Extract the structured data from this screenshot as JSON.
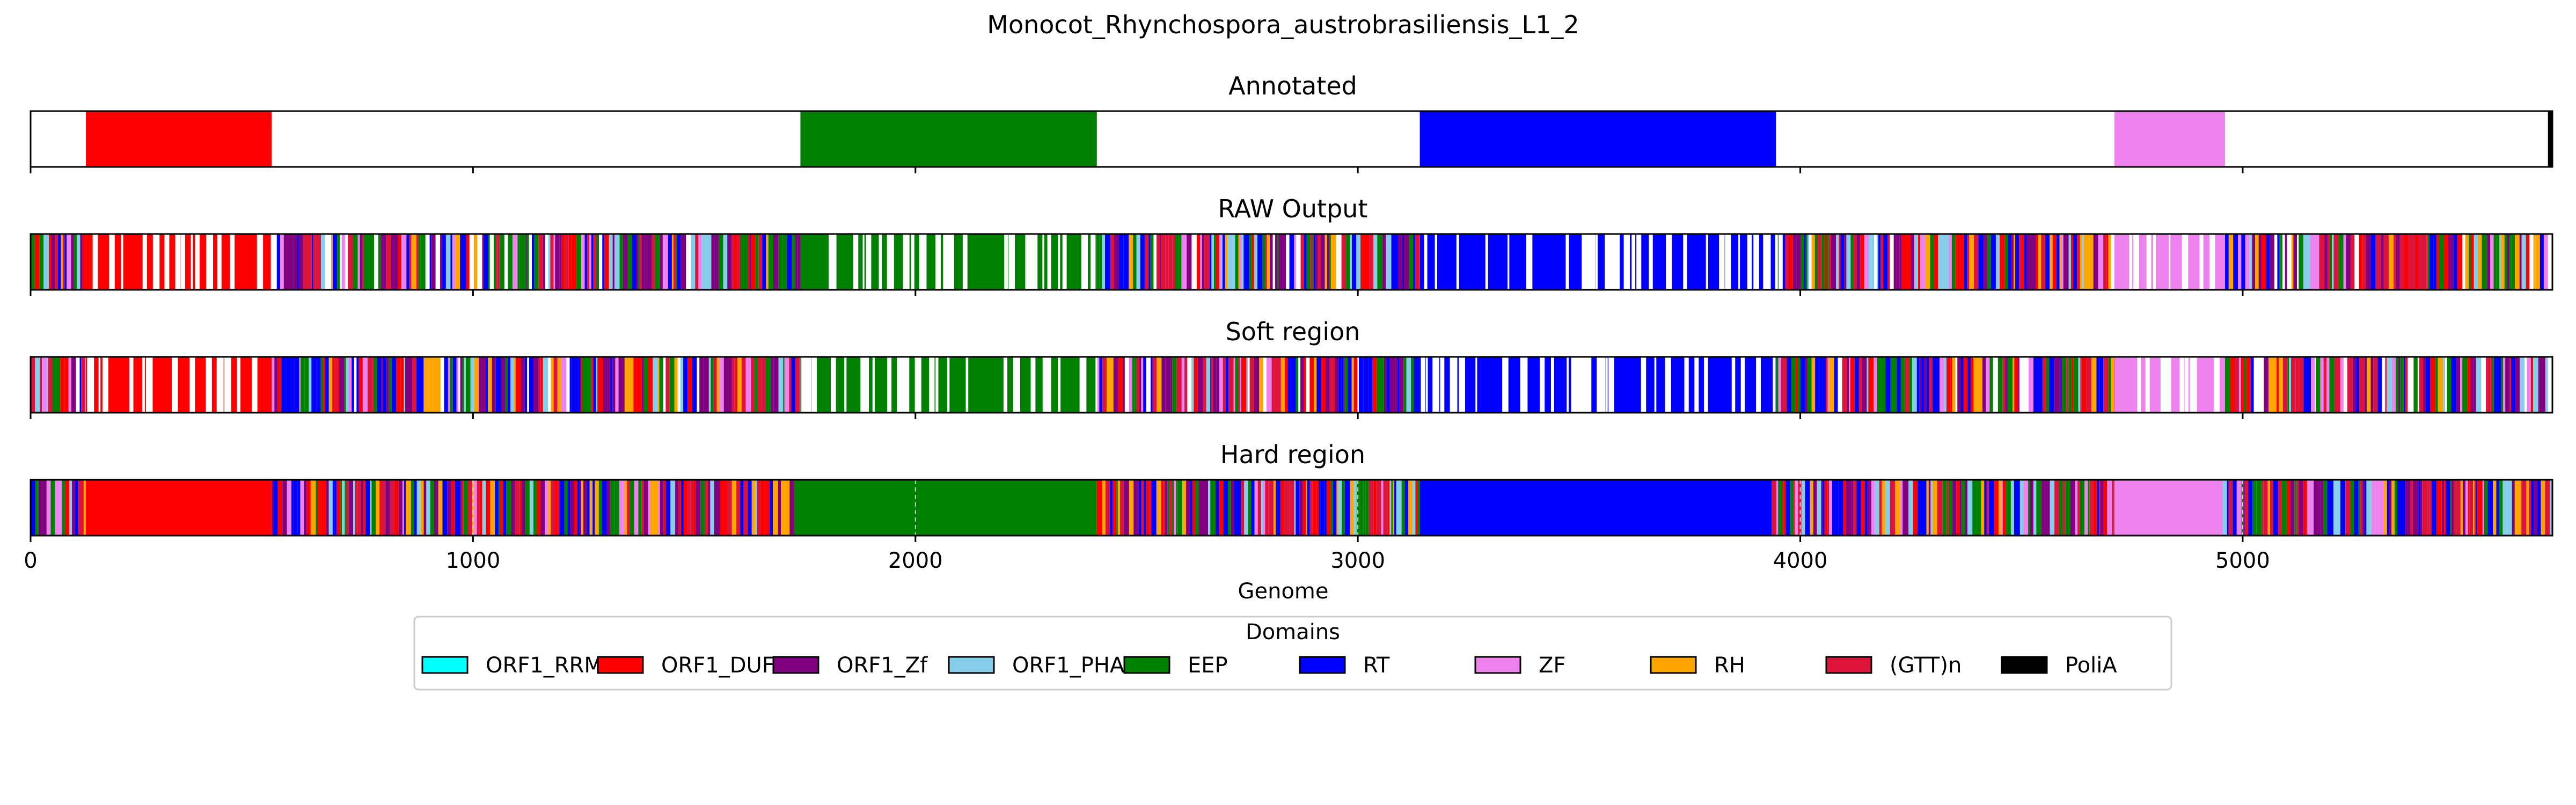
{
  "chart_data": {
    "type": "domain-tracks",
    "title": "Monocot_Rhynchospora_austrobrasiliensis_L1_2",
    "xlabel": "Genome",
    "xlim": [
      0,
      5700
    ],
    "xticks": [
      0,
      1000,
      2000,
      3000,
      4000,
      5000
    ],
    "xtick_labels": [
      "0",
      "1000",
      "2000",
      "3000",
      "4000",
      "5000"
    ],
    "legend_title": "Domains",
    "legend_position": "below",
    "domains": [
      {
        "name": "ORF1_RRM",
        "color": "#00FFFF"
      },
      {
        "name": "ORF1_DUF",
        "color": "#FF0000"
      },
      {
        "name": "ORF1_Zf",
        "color": "#800080"
      },
      {
        "name": "ORF1_PHA",
        "color": "#87CEEB"
      },
      {
        "name": "EEP",
        "color": "#008000"
      },
      {
        "name": "RT",
        "color": "#0000FF"
      },
      {
        "name": "ZF",
        "color": "#EE82EE"
      },
      {
        "name": "RH",
        "color": "#FFA500"
      },
      {
        "name": "(GTT)n",
        "color": "#DC143C"
      },
      {
        "name": "PoliA",
        "color": "#000000"
      }
    ],
    "tracks": [
      {
        "name": "Annotated",
        "segments": [
          {
            "domain": "ORF1_DUF",
            "start": 125,
            "end": 545
          },
          {
            "domain": "EEP",
            "start": 1740,
            "end": 2410
          },
          {
            "domain": "RT",
            "start": 3140,
            "end": 3945
          },
          {
            "domain": "ZF",
            "start": 4710,
            "end": 4960
          },
          {
            "domain": "PoliA",
            "start": 5690,
            "end": 5700
          }
        ],
        "noise": []
      },
      {
        "name": "RAW Output",
        "segments": [
          {
            "domain": "ORF1_DUF",
            "start": 125,
            "end": 545
          },
          {
            "domain": "EEP",
            "start": 1740,
            "end": 2410
          },
          {
            "domain": "RT",
            "start": 3140,
            "end": 3945
          },
          {
            "domain": "ZF",
            "start": 4710,
            "end": 4960
          }
        ],
        "noise": [
          [
            0,
            125
          ],
          [
            545,
            1740
          ],
          [
            2410,
            3140
          ],
          [
            3945,
            4710
          ],
          [
            4960,
            5690
          ]
        ],
        "gaps": true
      },
      {
        "name": "Soft region",
        "segments": [
          {
            "domain": "ORF1_DUF",
            "start": 125,
            "end": 545
          },
          {
            "domain": "EEP",
            "start": 1740,
            "end": 2410
          },
          {
            "domain": "RT",
            "start": 3140,
            "end": 3945
          },
          {
            "domain": "ZF",
            "start": 4710,
            "end": 4960
          }
        ],
        "noise": [
          [
            0,
            125
          ],
          [
            545,
            1740
          ],
          [
            2410,
            3140
          ],
          [
            3945,
            4710
          ],
          [
            4960,
            5690
          ]
        ],
        "gaps": true
      },
      {
        "name": "Hard region",
        "segments": [
          {
            "domain": "ORF1_DUF",
            "start": 125,
            "end": 545
          },
          {
            "domain": "EEP",
            "start": 1725,
            "end": 2410
          },
          {
            "domain": "RT",
            "start": 3140,
            "end": 3935
          },
          {
            "domain": "ZF",
            "start": 4710,
            "end": 4955
          }
        ],
        "noise": [
          [
            0,
            125
          ],
          [
            545,
            1725
          ],
          [
            2410,
            3140
          ],
          [
            3935,
            4710
          ],
          [
            4955,
            5700
          ]
        ],
        "gaps": false
      }
    ]
  }
}
